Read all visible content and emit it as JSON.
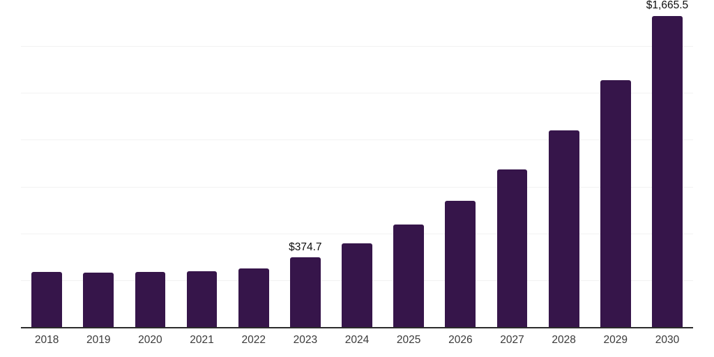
{
  "chart_data": {
    "type": "bar",
    "title": "",
    "xlabel": "",
    "ylabel": "",
    "categories": [
      "2018",
      "2019",
      "2020",
      "2021",
      "2022",
      "2023",
      "2024",
      "2025",
      "2026",
      "2027",
      "2028",
      "2029",
      "2030"
    ],
    "values": [
      298,
      296,
      297,
      302,
      317,
      374.7,
      451,
      550,
      677,
      845,
      1052,
      1323,
      1665.5
    ],
    "point_labels": {
      "2023": "$374.7",
      "2030": "$1,665.5"
    },
    "ylim": [
      0,
      1750
    ],
    "gridline_step": 250,
    "grid": true,
    "legend": false,
    "colors": {
      "bar": "#36154a",
      "gridline": "#f2f2f2",
      "axis_line": "#2b2b2b",
      "value_label": "#0d0d0d",
      "tick_label": "#3a3a3a",
      "background": "#ffffff"
    }
  }
}
